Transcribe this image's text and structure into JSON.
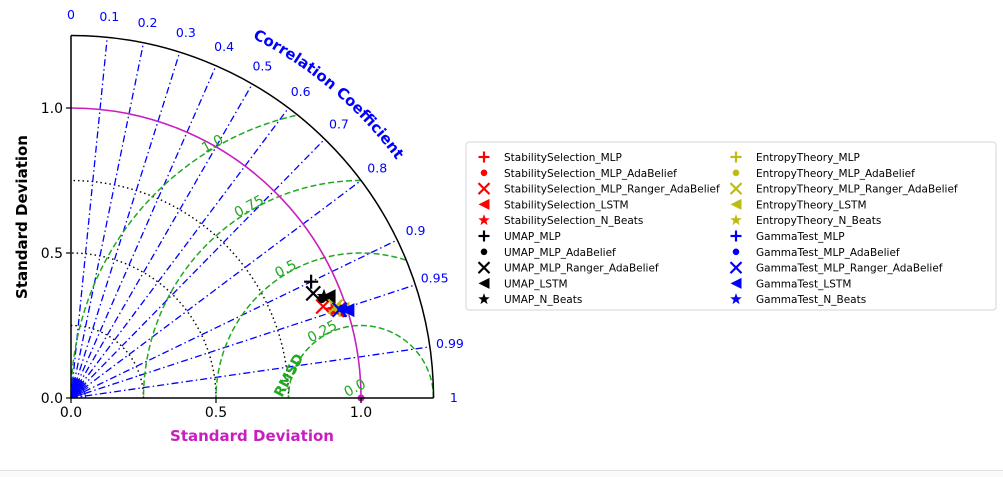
{
  "chart_data": {
    "type": "scatter",
    "subtype": "taylor-diagram",
    "title": "",
    "xlabel": "Standard Deviation",
    "ylabel": "Standard Deviation",
    "corr_axis_label": "Correlation Coefficient",
    "rmsd_axis_label": "RMSD",
    "std_range": [
      0,
      1.25
    ],
    "std_ticks": [
      0.0,
      0.5,
      1.0
    ],
    "std_tick_labels": [
      "0.0",
      "0.5",
      "1.0"
    ],
    "corr_ticks": [
      0,
      0.1,
      0.2,
      0.3,
      0.4,
      0.5,
      0.6,
      0.7,
      0.8,
      0.9,
      0.95,
      0.99,
      1
    ],
    "corr_tick_labels": [
      "0",
      "0.1",
      "0.2",
      "0.3",
      "0.4",
      "0.5",
      "0.6",
      "0.7",
      "0.8",
      "0.9",
      "0.95",
      "0.99",
      "1"
    ],
    "std_contours": [
      0.25,
      0.5,
      0.75
    ],
    "rmsd_contours": [
      0.25,
      0.5,
      0.75,
      1.0
    ],
    "rmsd_contour_labels": [
      "0.25",
      "0.5",
      "0.75",
      "1.0"
    ],
    "rmsd_zero_label": "0.0",
    "reference_std": 1.0,
    "legend_position": "right",
    "colors": {
      "axes": "#000000",
      "corr_lines": "#0000ff",
      "rmsd_lines": "#22a822",
      "std_lines": "#000000",
      "reference": "#c71fbf",
      "stability": "#ff0000",
      "umap": "#000000",
      "entropy": "#bcbc12",
      "gamma": "#0000ff"
    },
    "series": [
      {
        "name": "StabilitySelection_MLP",
        "marker": "plus",
        "group": "stability",
        "std": 0.95,
        "corr": 0.946
      },
      {
        "name": "StabilitySelection_MLP_AdaBelief",
        "marker": "circle",
        "group": "stability",
        "std": 0.955,
        "corr": 0.948
      },
      {
        "name": "StabilitySelection_MLP_Ranger_AdaBelief",
        "marker": "x",
        "group": "stability",
        "std": 0.925,
        "corr": 0.94
      },
      {
        "name": "StabilitySelection_LSTM",
        "marker": "triangle-left",
        "group": "stability",
        "std": 0.965,
        "corr": 0.95
      },
      {
        "name": "StabilitySelection_N_Beats",
        "marker": "star",
        "group": "stability",
        "std": 0.96,
        "corr": 0.948
      },
      {
        "name": "UMAP_MLP",
        "marker": "plus",
        "group": "umap",
        "std": 0.92,
        "corr": 0.9
      },
      {
        "name": "UMAP_MLP_AdaBelief",
        "marker": "circle",
        "group": "umap",
        "std": 0.93,
        "corr": 0.93
      },
      {
        "name": "UMAP_MLP_Ranger_AdaBelief",
        "marker": "x",
        "group": "umap",
        "std": 0.91,
        "corr": 0.918
      },
      {
        "name": "UMAP_LSTM",
        "marker": "triangle-left",
        "group": "umap",
        "std": 0.955,
        "corr": 0.93
      },
      {
        "name": "UMAP_N_Beats",
        "marker": "star",
        "group": "umap",
        "std": 0.94,
        "corr": 0.928
      },
      {
        "name": "EntropyTheory_MLP",
        "marker": "plus",
        "group": "entropy",
        "std": 0.975,
        "corr": 0.95
      },
      {
        "name": "EntropyTheory_MLP_AdaBelief",
        "marker": "circle",
        "group": "entropy",
        "std": 0.97,
        "corr": 0.948
      },
      {
        "name": "EntropyTheory_MLP_Ranger_AdaBelief",
        "marker": "x",
        "group": "entropy",
        "std": 0.965,
        "corr": 0.945
      },
      {
        "name": "EntropyTheory_LSTM",
        "marker": "triangle-left",
        "group": "entropy",
        "std": 0.985,
        "corr": 0.95
      },
      {
        "name": "EntropyTheory_N_Beats",
        "marker": "star",
        "group": "entropy",
        "std": 0.978,
        "corr": 0.948
      },
      {
        "name": "GammaTest_MLP",
        "marker": "plus",
        "group": "gamma",
        "std": 0.99,
        "corr": 0.952
      },
      {
        "name": "GammaTest_MLP_AdaBelief",
        "marker": "circle",
        "group": "gamma",
        "std": 0.985,
        "corr": 0.95
      },
      {
        "name": "GammaTest_MLP_Ranger_AdaBelief",
        "marker": "x",
        "group": "gamma",
        "std": 0.975,
        "corr": 0.95
      },
      {
        "name": "GammaTest_LSTM",
        "marker": "triangle-left",
        "group": "gamma",
        "std": 1.0,
        "corr": 0.953
      },
      {
        "name": "GammaTest_N_Beats",
        "marker": "star",
        "group": "gamma",
        "std": 0.995,
        "corr": 0.951
      }
    ]
  }
}
